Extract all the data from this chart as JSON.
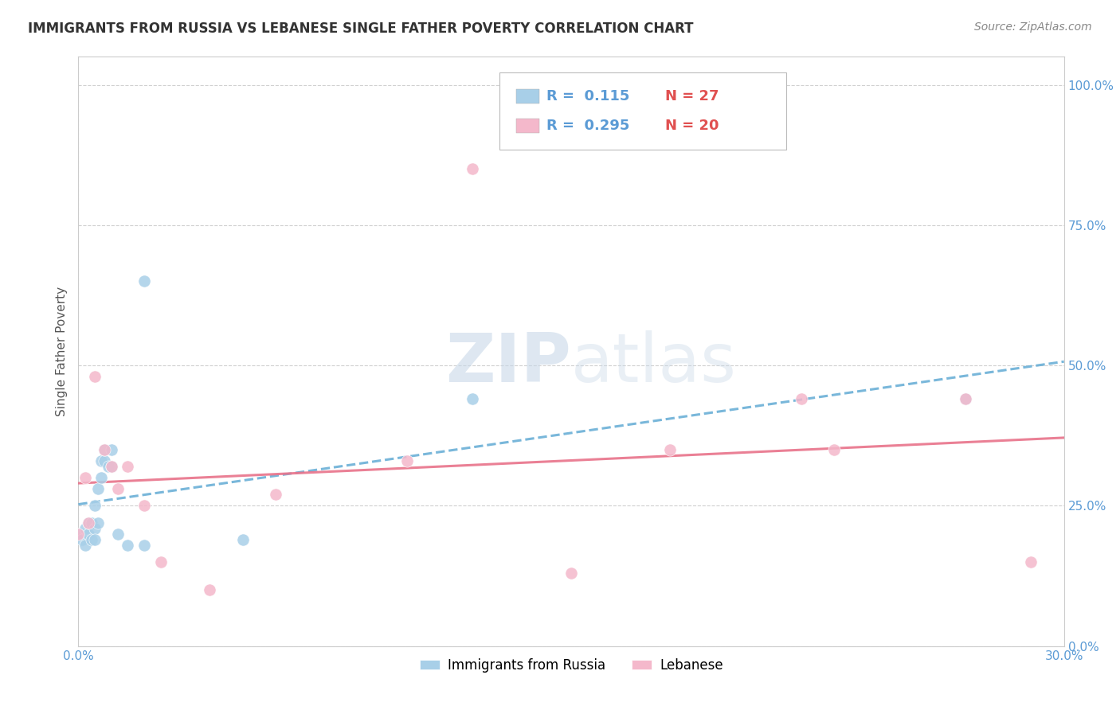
{
  "title": "IMMIGRANTS FROM RUSSIA VS LEBANESE SINGLE FATHER POVERTY CORRELATION CHART",
  "source": "Source: ZipAtlas.com",
  "ylabel": "Single Father Poverty",
  "xlim": [
    0.0,
    0.3
  ],
  "ylim": [
    0.0,
    1.05
  ],
  "yticks": [
    0.0,
    0.25,
    0.5,
    0.75,
    1.0
  ],
  "ytick_labels": [
    "0.0%",
    "25.0%",
    "50.0%",
    "75.0%",
    "100.0%"
  ],
  "xticks": [
    0.0,
    0.3
  ],
  "xtick_labels": [
    "0.0%",
    "30.0%"
  ],
  "blue_scatter_color": "#a8cfe8",
  "pink_scatter_color": "#f4b8cb",
  "blue_line_color": "#6aafd6",
  "pink_line_color": "#e8728a",
  "R1": "0.115",
  "N1": "27",
  "R2": "0.295",
  "N2": "20",
  "legend_r_color": "#5b9bd5",
  "legend_n_color": "#e05050",
  "series1_label": "Immigrants from Russia",
  "series2_label": "Lebanese",
  "russia_x": [
    0.0,
    0.001,
    0.002,
    0.002,
    0.003,
    0.003,
    0.004,
    0.004,
    0.005,
    0.005,
    0.005,
    0.006,
    0.006,
    0.007,
    0.007,
    0.008,
    0.008,
    0.009,
    0.01,
    0.01,
    0.012,
    0.015,
    0.02,
    0.02,
    0.05,
    0.12,
    0.27
  ],
  "russia_y": [
    0.2,
    0.19,
    0.18,
    0.21,
    0.2,
    0.22,
    0.19,
    0.22,
    0.21,
    0.25,
    0.19,
    0.22,
    0.28,
    0.3,
    0.33,
    0.33,
    0.35,
    0.32,
    0.32,
    0.35,
    0.2,
    0.18,
    0.18,
    0.65,
    0.19,
    0.44,
    0.44
  ],
  "lebanese_x": [
    0.0,
    0.002,
    0.003,
    0.005,
    0.008,
    0.01,
    0.012,
    0.015,
    0.02,
    0.025,
    0.04,
    0.06,
    0.1,
    0.12,
    0.15,
    0.18,
    0.22,
    0.23,
    0.27,
    0.29
  ],
  "lebanese_y": [
    0.2,
    0.3,
    0.22,
    0.48,
    0.35,
    0.32,
    0.28,
    0.32,
    0.25,
    0.15,
    0.1,
    0.27,
    0.33,
    0.85,
    0.13,
    0.35,
    0.44,
    0.35,
    0.44,
    0.15
  ]
}
